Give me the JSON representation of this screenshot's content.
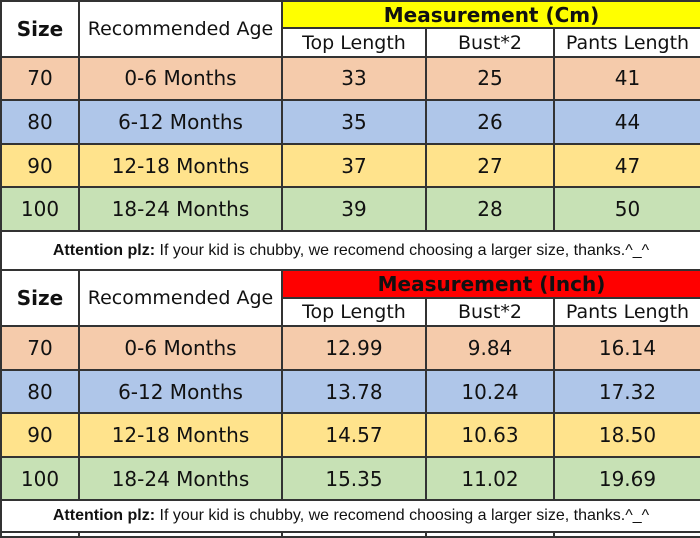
{
  "table": {
    "size_header": "Size",
    "age_header": "Recommended Age",
    "sub_headers": [
      "Top Length",
      "Bust*2",
      "Pants Length"
    ],
    "attention": {
      "bold": "Attention plz:",
      "text": " If your kid is chubby, we recomend choosing a larger size, thanks.^_^"
    },
    "sections": [
      {
        "measurement_label": "Measurement (Cm)",
        "unit": "Cm",
        "header_bg": "#ffff00",
        "rows": [
          {
            "size": "70",
            "age": "0-6 Months",
            "values": [
              "33",
              "25",
              "41"
            ]
          },
          {
            "size": "80",
            "age": "6-12 Months",
            "values": [
              "35",
              "26",
              "44"
            ]
          },
          {
            "size": "90",
            "age": "12-18 Months",
            "values": [
              "37",
              "27",
              "47"
            ]
          },
          {
            "size": "100",
            "age": "18-24 Months",
            "values": [
              "39",
              "28",
              "50"
            ]
          }
        ]
      },
      {
        "measurement_label": "Measurement (Inch)",
        "unit": "Inch",
        "header_bg": "#ff0000",
        "rows": [
          {
            "size": "70",
            "age": "0-6 Months",
            "values": [
              "12.99",
              "9.84",
              "16.14"
            ]
          },
          {
            "size": "80",
            "age": "6-12 Months",
            "values": [
              "13.78",
              "10.24",
              "17.32"
            ]
          },
          {
            "size": "90",
            "age": "12-18 Months",
            "values": [
              "14.57",
              "10.63",
              "18.50"
            ]
          },
          {
            "size": "100",
            "age": "18-24 Months",
            "values": [
              "15.35",
              "11.02",
              "19.69"
            ]
          }
        ]
      }
    ],
    "colors": {
      "row_colors": [
        "#f5cbab",
        "#afc6e9",
        "#ffe38c",
        "#c7e1b5"
      ],
      "header_cm_bg": "#ffff00",
      "header_inch_bg": "#ff0000",
      "border": "#333333"
    }
  }
}
